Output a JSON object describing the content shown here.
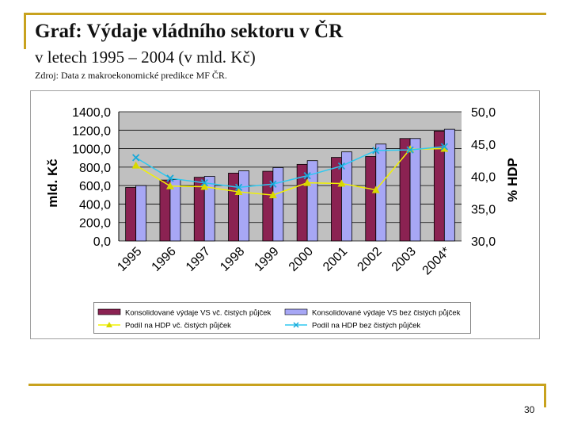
{
  "slide": {
    "title": "Graf: Výdaje vládního sektoru v ČR",
    "subtitle": "v letech 1995 – 2004 (v mld. Kč)",
    "source": "Zdroj: Data z makroekonomické predikce MF ČR.",
    "page_number": "30"
  },
  "colors": {
    "frame": "#c8a21e",
    "plot_bg": "#c0c0c0",
    "bar1": "#8b2252",
    "bar2": "#a7a7f5",
    "line1": "#f2f200",
    "line2": "#2ec8f0"
  },
  "chart_data": {
    "type": "bar",
    "categories": [
      "1995",
      "1996",
      "1997",
      "1998",
      "1999",
      "2000",
      "2001",
      "2002",
      "2003",
      "2004*"
    ],
    "ylabel": "mld. Kč",
    "ylabel_right": "% HDP",
    "ylim": [
      0,
      1400
    ],
    "y_ticks": [
      "0,0",
      "200,0",
      "400,0",
      "600,0",
      "800,0",
      "1000,0",
      "1200,0",
      "1400,0"
    ],
    "ylim_right": [
      30,
      50
    ],
    "y_ticks_right": [
      "30,0",
      "35,0",
      "40,0",
      "45,0",
      "50,0"
    ],
    "grid": true,
    "legend_position": "bottom",
    "series": [
      {
        "name": "Konsolidované výdaje VS vč. čistých půjček",
        "kind": "bar",
        "axis": "left",
        "values": [
          580,
          660,
          690,
          735,
          755,
          830,
          905,
          915,
          1110,
          1190
        ]
      },
      {
        "name": "Konsolidované výdaje VS bez čistých půjček",
        "kind": "bar",
        "axis": "left",
        "values": [
          600,
          665,
          700,
          760,
          795,
          870,
          965,
          1050,
          1110,
          1210
        ]
      },
      {
        "name": "Podíl na HDP vč. čistých půjček",
        "kind": "line",
        "axis": "right",
        "marker": "triangle",
        "values": [
          41.7,
          38.5,
          38.4,
          37.6,
          37.1,
          39.0,
          38.9,
          37.9,
          44.2,
          44.3
        ]
      },
      {
        "name": "Podíl na HDP bez čistých půjček",
        "kind": "line",
        "axis": "right",
        "marker": "x",
        "values": [
          42.9,
          39.7,
          39.0,
          38.3,
          38.8,
          40.1,
          41.6,
          44.0,
          44.1,
          44.6
        ]
      }
    ]
  }
}
